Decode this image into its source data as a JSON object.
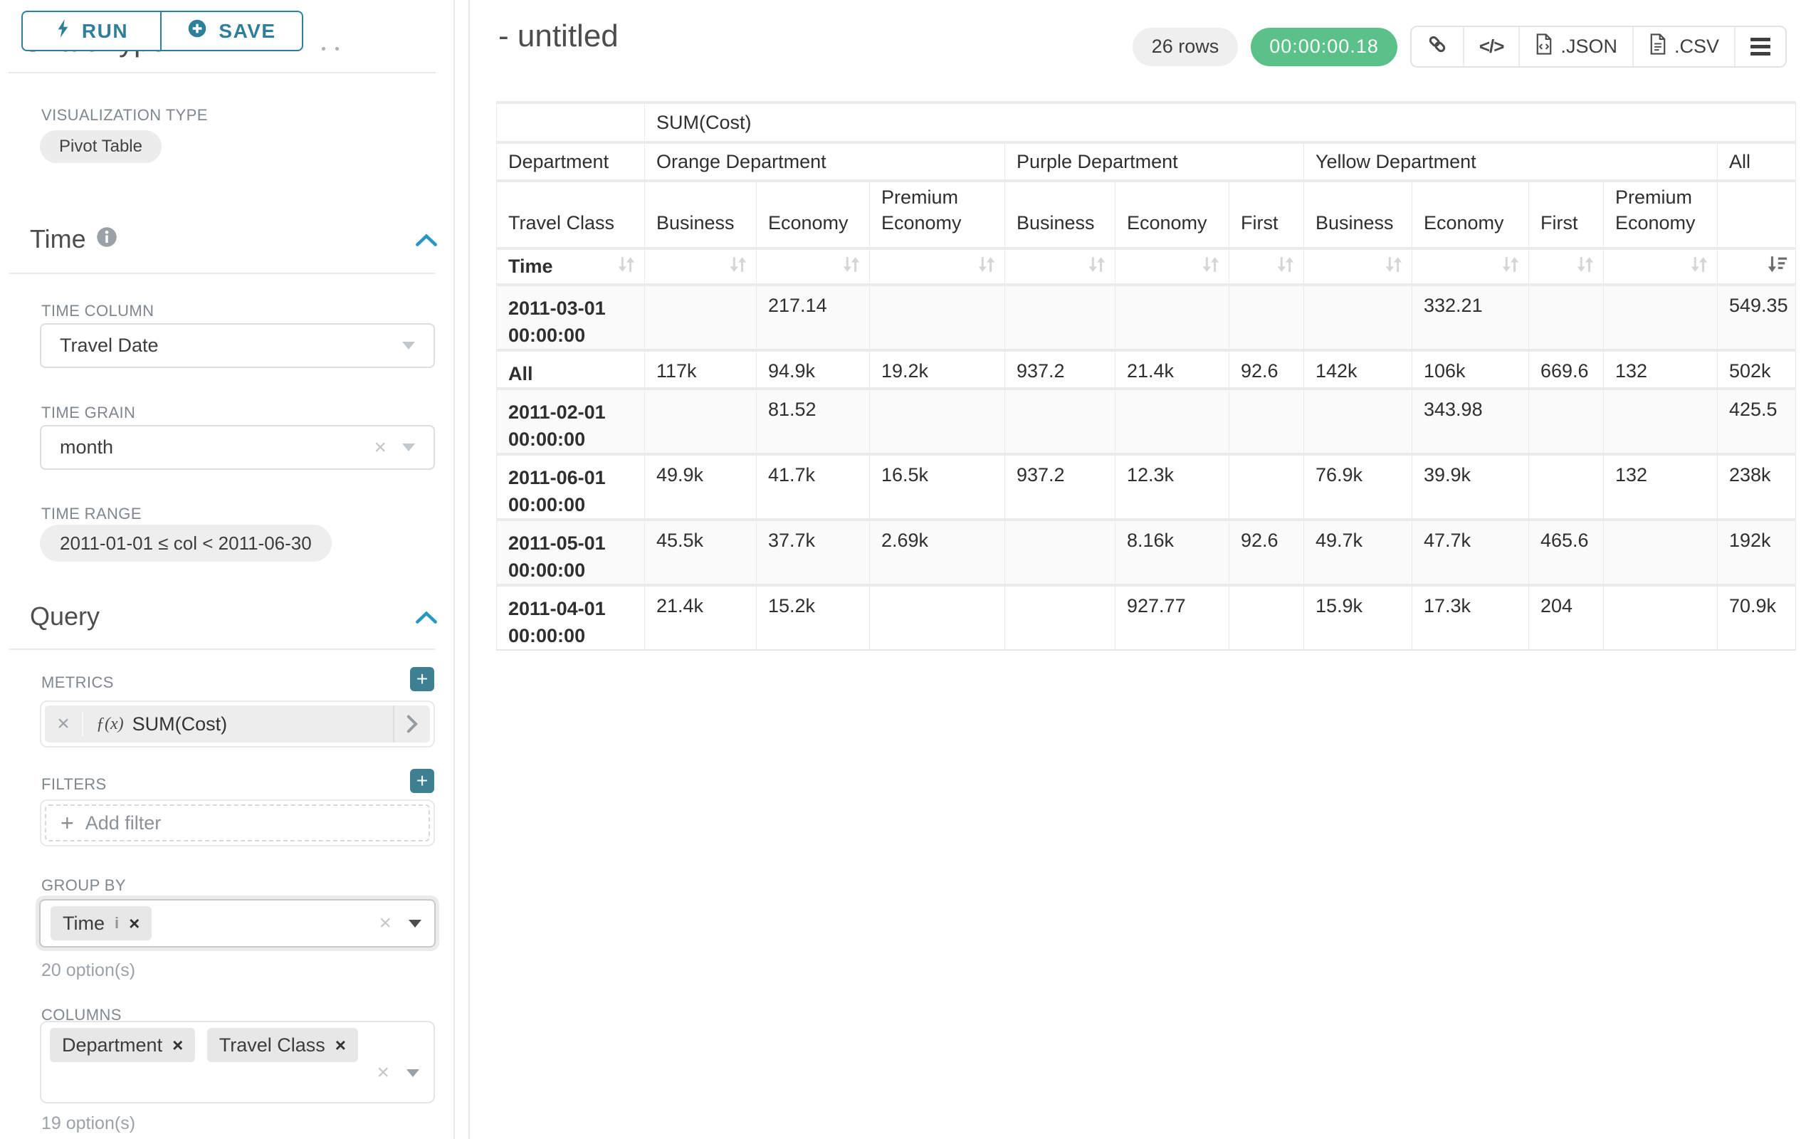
{
  "sidebar": {
    "run_button": {
      "label": "RUN"
    },
    "save_button": {
      "label": "SAVE"
    },
    "chart_type_section": {
      "title": "Chart Type"
    },
    "visualization": {
      "label": "VISUALIZATION TYPE",
      "value": "Pivot Table"
    },
    "time_section": {
      "title": "Time",
      "time_column": {
        "label": "TIME COLUMN",
        "value": "Travel Date"
      },
      "time_grain": {
        "label": "TIME GRAIN",
        "value": "month"
      },
      "time_range": {
        "label": "TIME RANGE",
        "value": "2011-01-01 ≤ col < 2011-06-30"
      }
    },
    "query_section": {
      "title": "Query",
      "metrics": {
        "label": "METRICS",
        "fx": "ƒ(x)",
        "value": "SUM(Cost)"
      },
      "filters": {
        "label": "FILTERS",
        "placeholder": "Add filter"
      },
      "group_by": {
        "label": "GROUP BY",
        "tags": [
          "Time"
        ],
        "hint": "20 option(s)"
      },
      "columns": {
        "label": "COLUMNS",
        "tags": [
          "Department",
          "Travel Class"
        ],
        "hint": "19 option(s)"
      }
    }
  },
  "header": {
    "title": "- untitled",
    "row_count_badge": "26 rows",
    "timer_badge": "00:00:00.18",
    "actions": {
      "json_label": ".JSON",
      "csv_label": ".CSV"
    },
    "icons": [
      "link-icon",
      "code-icon",
      "file-json-icon",
      "file-csv-icon",
      "menu-icon"
    ]
  },
  "pivot": {
    "metric_header": "SUM(Cost)",
    "column_axes": [
      "Department",
      "Travel Class"
    ],
    "row_axis": "Time",
    "column_groups": [
      {
        "label": "Orange Department",
        "span": 3
      },
      {
        "label": "Purple Department",
        "span": 3
      },
      {
        "label": "Yellow Department",
        "span": 4
      },
      {
        "label": "All",
        "span": 1
      }
    ],
    "column_leaves": [
      "Business",
      "Economy",
      "Premium Economy",
      "Business",
      "Economy",
      "First",
      "Business",
      "Economy",
      "First",
      "Premium Economy",
      ""
    ],
    "sort": {
      "active_column": 10,
      "direction": "desc"
    },
    "rows": [
      {
        "label": "2011-03-01 00:00:00",
        "values": [
          "",
          "217.14",
          "",
          "",
          "",
          "",
          "",
          "332.21",
          "",
          "",
          "549.35"
        ]
      },
      {
        "label": "All",
        "values": [
          "117k",
          "94.9k",
          "19.2k",
          "937.2",
          "21.4k",
          "92.6",
          "142k",
          "106k",
          "669.6",
          "132",
          "502k"
        ]
      },
      {
        "label": "2011-02-01 00:00:00",
        "values": [
          "",
          "81.52",
          "",
          "",
          "",
          "",
          "",
          "343.98",
          "",
          "",
          "425.5"
        ]
      },
      {
        "label": "2011-06-01 00:00:00",
        "values": [
          "49.9k",
          "41.7k",
          "16.5k",
          "937.2",
          "12.3k",
          "",
          "76.9k",
          "39.9k",
          "",
          "132",
          "238k"
        ]
      },
      {
        "label": "2011-05-01 00:00:00",
        "values": [
          "45.5k",
          "37.7k",
          "2.69k",
          "",
          "8.16k",
          "92.6",
          "49.7k",
          "47.7k",
          "465.6",
          "",
          "192k"
        ]
      },
      {
        "label": "2011-04-01 00:00:00",
        "values": [
          "21.4k",
          "15.2k",
          "",
          "",
          "927.77",
          "",
          "15.9k",
          "17.3k",
          "204",
          "",
          "70.9k"
        ]
      }
    ]
  },
  "colors": {
    "accent_teal": "#2e7f99",
    "plus_button": "#3d8092",
    "timer_green": "#5ac189",
    "chevron_blue": "#2a97c0"
  }
}
